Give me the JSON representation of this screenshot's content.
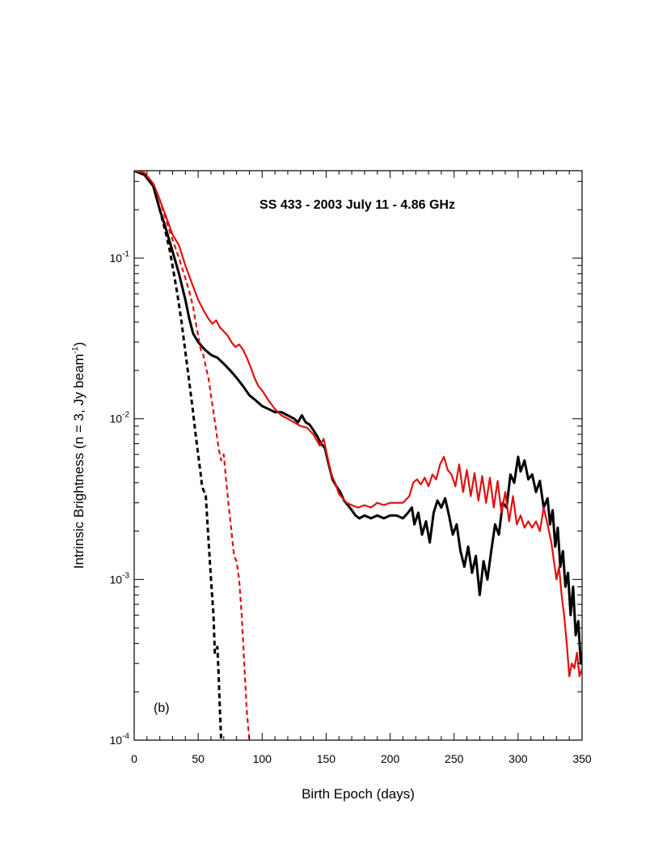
{
  "chart_data": {
    "type": "line",
    "title": "SS 433  -  2003 July 11  -  4.86 GHz",
    "panel_label": "(b)",
    "xlabel": "Birth Epoch (days)",
    "ylabel": {
      "prefix": "Intrinsic Brightness (n = 3, Jy beam",
      "superscript": "-1",
      "suffix": ")"
    },
    "xlim": [
      0,
      350
    ],
    "ylim": [
      0.0001,
      0.35
    ],
    "yscale": "log",
    "x_ticks": [
      0,
      50,
      100,
      150,
      200,
      250,
      300,
      350
    ],
    "y_ticks": [
      {
        "value": 0.0001,
        "base": "10",
        "exp": "-4"
      },
      {
        "value": 0.001,
        "base": "10",
        "exp": "-3"
      },
      {
        "value": 0.01,
        "base": "10",
        "exp": "-2"
      },
      {
        "value": 0.1,
        "base": "10",
        "exp": "-1"
      }
    ],
    "grid": false,
    "series": [
      {
        "color": "#000000",
        "style": "solid",
        "points": [
          [
            0,
            0.35
          ],
          [
            8,
            0.33
          ],
          [
            15,
            0.28
          ],
          [
            20,
            0.2
          ],
          [
            25,
            0.15
          ],
          [
            30,
            0.11
          ],
          [
            35,
            0.08
          ],
          [
            40,
            0.055
          ],
          [
            43,
            0.042
          ],
          [
            46,
            0.034
          ],
          [
            50,
            0.03
          ],
          [
            55,
            0.027
          ],
          [
            60,
            0.025
          ],
          [
            65,
            0.024
          ],
          [
            70,
            0.022
          ],
          [
            75,
            0.02
          ],
          [
            80,
            0.018
          ],
          [
            85,
            0.016
          ],
          [
            90,
            0.014
          ],
          [
            95,
            0.013
          ],
          [
            100,
            0.012
          ],
          [
            105,
            0.0115
          ],
          [
            110,
            0.011
          ],
          [
            115,
            0.011
          ],
          [
            120,
            0.0105
          ],
          [
            125,
            0.01
          ],
          [
            128,
            0.0095
          ],
          [
            131,
            0.0105
          ],
          [
            134,
            0.0095
          ],
          [
            137,
            0.0092
          ],
          [
            140,
            0.0085
          ],
          [
            143,
            0.0078
          ],
          [
            146,
            0.007
          ],
          [
            149,
            0.0066
          ],
          [
            152,
            0.0052
          ],
          [
            155,
            0.0042
          ],
          [
            158,
            0.0038
          ],
          [
            161,
            0.0035
          ],
          [
            164,
            0.0031
          ],
          [
            167,
            0.0029
          ],
          [
            170,
            0.0027
          ],
          [
            173,
            0.0025
          ],
          [
            176,
            0.0024
          ],
          [
            180,
            0.0025
          ],
          [
            185,
            0.0024
          ],
          [
            190,
            0.0025
          ],
          [
            195,
            0.0024
          ],
          [
            200,
            0.0025
          ],
          [
            205,
            0.0025
          ],
          [
            210,
            0.0024
          ],
          [
            214,
            0.0026
          ],
          [
            217,
            0.0028
          ],
          [
            219,
            0.0022
          ],
          [
            222,
            0.0026
          ],
          [
            225,
            0.0019
          ],
          [
            228,
            0.0023
          ],
          [
            231,
            0.0017
          ],
          [
            234,
            0.0026
          ],
          [
            237,
            0.0031
          ],
          [
            240,
            0.0028
          ],
          [
            243,
            0.0032
          ],
          [
            246,
            0.0025
          ],
          [
            249,
            0.0019
          ],
          [
            252,
            0.0022
          ],
          [
            255,
            0.0015
          ],
          [
            258,
            0.0012
          ],
          [
            261,
            0.0016
          ],
          [
            264,
            0.0011
          ],
          [
            267,
            0.0014
          ],
          [
            270,
            0.0008
          ],
          [
            273,
            0.0013
          ],
          [
            276,
            0.001
          ],
          [
            279,
            0.0015
          ],
          [
            282,
            0.0022
          ],
          [
            285,
            0.0019
          ],
          [
            288,
            0.003
          ],
          [
            291,
            0.0028
          ],
          [
            294,
            0.0045
          ],
          [
            297,
            0.004
          ],
          [
            300,
            0.0058
          ],
          [
            302,
            0.0047
          ],
          [
            305,
            0.0055
          ],
          [
            308,
            0.0042
          ],
          [
            311,
            0.0045
          ],
          [
            314,
            0.0035
          ],
          [
            317,
            0.0041
          ],
          [
            320,
            0.0028
          ],
          [
            323,
            0.0032
          ],
          [
            325,
            0.0022
          ],
          [
            327,
            0.0027
          ],
          [
            329,
            0.0016
          ],
          [
            331,
            0.0021
          ],
          [
            333,
            0.0012
          ],
          [
            335,
            0.0015
          ],
          [
            337,
            0.0009
          ],
          [
            339,
            0.0011
          ],
          [
            341,
            0.0006
          ],
          [
            343,
            0.0009
          ],
          [
            345,
            0.00045
          ],
          [
            347,
            0.00055
          ],
          [
            349,
            0.0003
          ],
          [
            350,
            0.00035
          ]
        ]
      },
      {
        "color": "#e01010",
        "style": "solid",
        "points": [
          [
            0,
            0.35
          ],
          [
            8,
            0.34
          ],
          [
            15,
            0.29
          ],
          [
            20,
            0.23
          ],
          [
            25,
            0.18
          ],
          [
            30,
            0.14
          ],
          [
            35,
            0.12
          ],
          [
            40,
            0.09
          ],
          [
            45,
            0.07
          ],
          [
            50,
            0.055
          ],
          [
            55,
            0.046
          ],
          [
            58,
            0.042
          ],
          [
            61,
            0.039
          ],
          [
            64,
            0.041
          ],
          [
            67,
            0.037
          ],
          [
            70,
            0.035
          ],
          [
            73,
            0.033
          ],
          [
            76,
            0.03
          ],
          [
            79,
            0.028
          ],
          [
            82,
            0.029
          ],
          [
            85,
            0.027
          ],
          [
            88,
            0.024
          ],
          [
            91,
            0.021
          ],
          [
            94,
            0.018
          ],
          [
            97,
            0.016
          ],
          [
            100,
            0.015
          ],
          [
            105,
            0.013
          ],
          [
            110,
            0.0115
          ],
          [
            115,
            0.0105
          ],
          [
            120,
            0.01
          ],
          [
            125,
            0.0095
          ],
          [
            130,
            0.009
          ],
          [
            135,
            0.0088
          ],
          [
            140,
            0.008
          ],
          [
            145,
            0.0068
          ],
          [
            148,
            0.0075
          ],
          [
            151,
            0.0058
          ],
          [
            154,
            0.0045
          ],
          [
            157,
            0.004
          ],
          [
            160,
            0.0034
          ],
          [
            163,
            0.0032
          ],
          [
            166,
            0.003
          ],
          [
            170,
            0.0029
          ],
          [
            175,
            0.0028
          ],
          [
            180,
            0.0029
          ],
          [
            185,
            0.0028
          ],
          [
            190,
            0.003
          ],
          [
            195,
            0.0029
          ],
          [
            200,
            0.003
          ],
          [
            205,
            0.003
          ],
          [
            210,
            0.003
          ],
          [
            215,
            0.0033
          ],
          [
            218,
            0.004
          ],
          [
            221,
            0.0042
          ],
          [
            224,
            0.0039
          ],
          [
            227,
            0.0043
          ],
          [
            230,
            0.0038
          ],
          [
            233,
            0.0045
          ],
          [
            236,
            0.0042
          ],
          [
            239,
            0.0052
          ],
          [
            242,
            0.0058
          ],
          [
            245,
            0.0048
          ],
          [
            248,
            0.0045
          ],
          [
            251,
            0.0038
          ],
          [
            254,
            0.0052
          ],
          [
            257,
            0.0035
          ],
          [
            260,
            0.0048
          ],
          [
            263,
            0.0033
          ],
          [
            266,
            0.0046
          ],
          [
            269,
            0.0031
          ],
          [
            272,
            0.0044
          ],
          [
            275,
            0.003
          ],
          [
            278,
            0.0043
          ],
          [
            281,
            0.0028
          ],
          [
            284,
            0.0041
          ],
          [
            287,
            0.0026
          ],
          [
            290,
            0.0035
          ],
          [
            293,
            0.0023
          ],
          [
            296,
            0.0033
          ],
          [
            299,
            0.0022
          ],
          [
            302,
            0.0025
          ],
          [
            305,
            0.0021
          ],
          [
            308,
            0.0023
          ],
          [
            311,
            0.0021
          ],
          [
            314,
            0.0023
          ],
          [
            317,
            0.002
          ],
          [
            320,
            0.0028
          ],
          [
            323,
            0.0022
          ],
          [
            326,
            0.0017
          ],
          [
            328,
            0.0013
          ],
          [
            330,
            0.001
          ],
          [
            332,
            0.0012
          ],
          [
            334,
            0.0008
          ],
          [
            336,
            0.0006
          ],
          [
            338,
            0.0004
          ],
          [
            340,
            0.00025
          ],
          [
            342,
            0.0003
          ],
          [
            344,
            0.00028
          ],
          [
            346,
            0.00035
          ],
          [
            348,
            0.00025
          ],
          [
            350,
            0.00028
          ]
        ]
      },
      {
        "color": "#000000",
        "style": "dashed",
        "points": [
          [
            0,
            0.35
          ],
          [
            8,
            0.33
          ],
          [
            15,
            0.28
          ],
          [
            20,
            0.2
          ],
          [
            25,
            0.14
          ],
          [
            28,
            0.11
          ],
          [
            31,
            0.08
          ],
          [
            34,
            0.058
          ],
          [
            37,
            0.04
          ],
          [
            40,
            0.026
          ],
          [
            43,
            0.017
          ],
          [
            46,
            0.011
          ],
          [
            48,
            0.008
          ],
          [
            50,
            0.006
          ],
          [
            52,
            0.0045
          ],
          [
            53,
            0.0038
          ],
          [
            56,
            0.0033
          ],
          [
            58,
            0.0018
          ],
          [
            60,
            0.001
          ],
          [
            62,
            0.0006
          ],
          [
            63,
            0.00035
          ],
          [
            65,
            0.00038
          ],
          [
            66,
            0.00025
          ],
          [
            67,
            0.00015
          ],
          [
            68,
            0.0001
          ]
        ]
      },
      {
        "color": "#e01010",
        "style": "dashed",
        "points": [
          [
            0,
            0.35
          ],
          [
            8,
            0.34
          ],
          [
            15,
            0.29
          ],
          [
            20,
            0.23
          ],
          [
            25,
            0.17
          ],
          [
            30,
            0.13
          ],
          [
            35,
            0.1
          ],
          [
            40,
            0.075
          ],
          [
            43,
            0.062
          ],
          [
            46,
            0.05
          ],
          [
            48,
            0.04
          ],
          [
            50,
            0.033
          ],
          [
            52,
            0.027
          ],
          [
            54,
            0.025
          ],
          [
            56,
            0.021
          ],
          [
            58,
            0.018
          ],
          [
            60,
            0.014
          ],
          [
            62,
            0.011
          ],
          [
            64,
            0.0085
          ],
          [
            66,
            0.0065
          ],
          [
            68,
            0.0055
          ],
          [
            70,
            0.006
          ],
          [
            72,
            0.004
          ],
          [
            74,
            0.0028
          ],
          [
            76,
            0.002
          ],
          [
            78,
            0.0014
          ],
          [
            80,
            0.0013
          ],
          [
            82,
            0.001
          ],
          [
            84,
            0.0006
          ],
          [
            86,
            0.0003
          ],
          [
            88,
            0.00015
          ],
          [
            90,
            0.0001
          ]
        ]
      }
    ]
  }
}
